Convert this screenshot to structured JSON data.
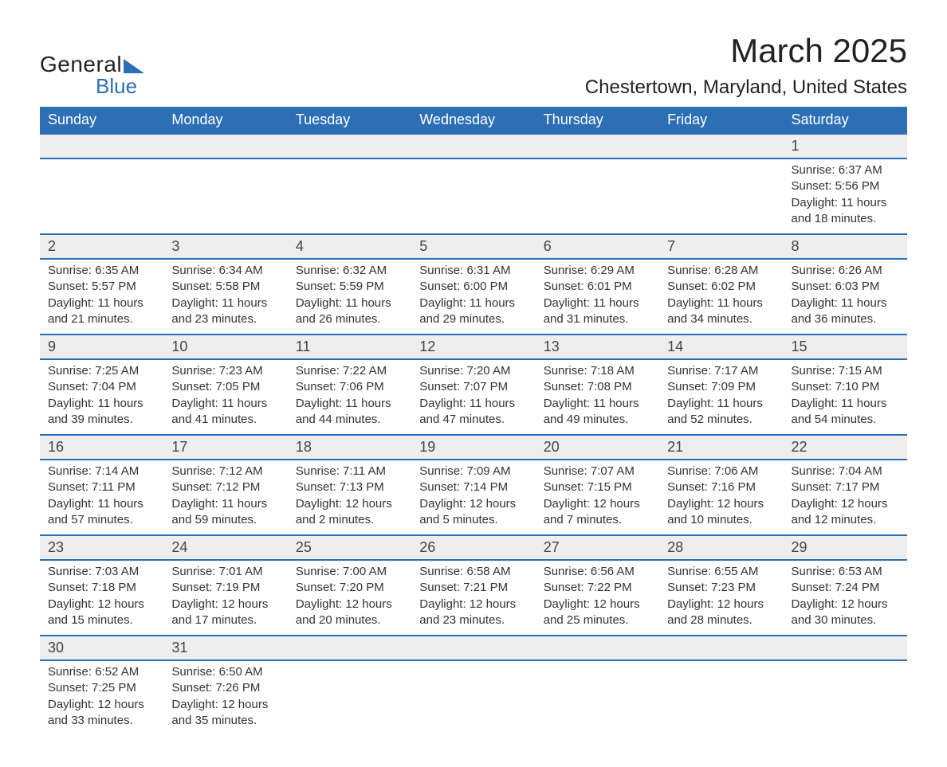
{
  "logo": {
    "line1": "General",
    "line2": "Blue",
    "accent_color": "#2d6fb4"
  },
  "header": {
    "month_title": "March 2025",
    "location": "Chestertown, Maryland, United States"
  },
  "calendar": {
    "type": "table",
    "header_bg": "#2d6fb4",
    "header_fg": "#ffffff",
    "row_separator_color": "#2d6fb4",
    "daynum_bg": "#eeeeee",
    "background_color": "#ffffff",
    "text_color": "#333333",
    "columns": [
      "Sunday",
      "Monday",
      "Tuesday",
      "Wednesday",
      "Thursday",
      "Friday",
      "Saturday"
    ],
    "weeks": [
      [
        null,
        null,
        null,
        null,
        null,
        null,
        {
          "n": "1",
          "sr": "6:37 AM",
          "ss": "5:56 PM",
          "dl": "11 hours and 18 minutes."
        }
      ],
      [
        {
          "n": "2",
          "sr": "6:35 AM",
          "ss": "5:57 PM",
          "dl": "11 hours and 21 minutes."
        },
        {
          "n": "3",
          "sr": "6:34 AM",
          "ss": "5:58 PM",
          "dl": "11 hours and 23 minutes."
        },
        {
          "n": "4",
          "sr": "6:32 AM",
          "ss": "5:59 PM",
          "dl": "11 hours and 26 minutes."
        },
        {
          "n": "5",
          "sr": "6:31 AM",
          "ss": "6:00 PM",
          "dl": "11 hours and 29 minutes."
        },
        {
          "n": "6",
          "sr": "6:29 AM",
          "ss": "6:01 PM",
          "dl": "11 hours and 31 minutes."
        },
        {
          "n": "7",
          "sr": "6:28 AM",
          "ss": "6:02 PM",
          "dl": "11 hours and 34 minutes."
        },
        {
          "n": "8",
          "sr": "6:26 AM",
          "ss": "6:03 PM",
          "dl": "11 hours and 36 minutes."
        }
      ],
      [
        {
          "n": "9",
          "sr": "7:25 AM",
          "ss": "7:04 PM",
          "dl": "11 hours and 39 minutes."
        },
        {
          "n": "10",
          "sr": "7:23 AM",
          "ss": "7:05 PM",
          "dl": "11 hours and 41 minutes."
        },
        {
          "n": "11",
          "sr": "7:22 AM",
          "ss": "7:06 PM",
          "dl": "11 hours and 44 minutes."
        },
        {
          "n": "12",
          "sr": "7:20 AM",
          "ss": "7:07 PM",
          "dl": "11 hours and 47 minutes."
        },
        {
          "n": "13",
          "sr": "7:18 AM",
          "ss": "7:08 PM",
          "dl": "11 hours and 49 minutes."
        },
        {
          "n": "14",
          "sr": "7:17 AM",
          "ss": "7:09 PM",
          "dl": "11 hours and 52 minutes."
        },
        {
          "n": "15",
          "sr": "7:15 AM",
          "ss": "7:10 PM",
          "dl": "11 hours and 54 minutes."
        }
      ],
      [
        {
          "n": "16",
          "sr": "7:14 AM",
          "ss": "7:11 PM",
          "dl": "11 hours and 57 minutes."
        },
        {
          "n": "17",
          "sr": "7:12 AM",
          "ss": "7:12 PM",
          "dl": "11 hours and 59 minutes."
        },
        {
          "n": "18",
          "sr": "7:11 AM",
          "ss": "7:13 PM",
          "dl": "12 hours and 2 minutes."
        },
        {
          "n": "19",
          "sr": "7:09 AM",
          "ss": "7:14 PM",
          "dl": "12 hours and 5 minutes."
        },
        {
          "n": "20",
          "sr": "7:07 AM",
          "ss": "7:15 PM",
          "dl": "12 hours and 7 minutes."
        },
        {
          "n": "21",
          "sr": "7:06 AM",
          "ss": "7:16 PM",
          "dl": "12 hours and 10 minutes."
        },
        {
          "n": "22",
          "sr": "7:04 AM",
          "ss": "7:17 PM",
          "dl": "12 hours and 12 minutes."
        }
      ],
      [
        {
          "n": "23",
          "sr": "7:03 AM",
          "ss": "7:18 PM",
          "dl": "12 hours and 15 minutes."
        },
        {
          "n": "24",
          "sr": "7:01 AM",
          "ss": "7:19 PM",
          "dl": "12 hours and 17 minutes."
        },
        {
          "n": "25",
          "sr": "7:00 AM",
          "ss": "7:20 PM",
          "dl": "12 hours and 20 minutes."
        },
        {
          "n": "26",
          "sr": "6:58 AM",
          "ss": "7:21 PM",
          "dl": "12 hours and 23 minutes."
        },
        {
          "n": "27",
          "sr": "6:56 AM",
          "ss": "7:22 PM",
          "dl": "12 hours and 25 minutes."
        },
        {
          "n": "28",
          "sr": "6:55 AM",
          "ss": "7:23 PM",
          "dl": "12 hours and 28 minutes."
        },
        {
          "n": "29",
          "sr": "6:53 AM",
          "ss": "7:24 PM",
          "dl": "12 hours and 30 minutes."
        }
      ],
      [
        {
          "n": "30",
          "sr": "6:52 AM",
          "ss": "7:25 PM",
          "dl": "12 hours and 33 minutes."
        },
        {
          "n": "31",
          "sr": "6:50 AM",
          "ss": "7:26 PM",
          "dl": "12 hours and 35 minutes."
        },
        null,
        null,
        null,
        null,
        null
      ]
    ],
    "labels": {
      "sunrise": "Sunrise:",
      "sunset": "Sunset:",
      "daylight": "Daylight:"
    }
  }
}
